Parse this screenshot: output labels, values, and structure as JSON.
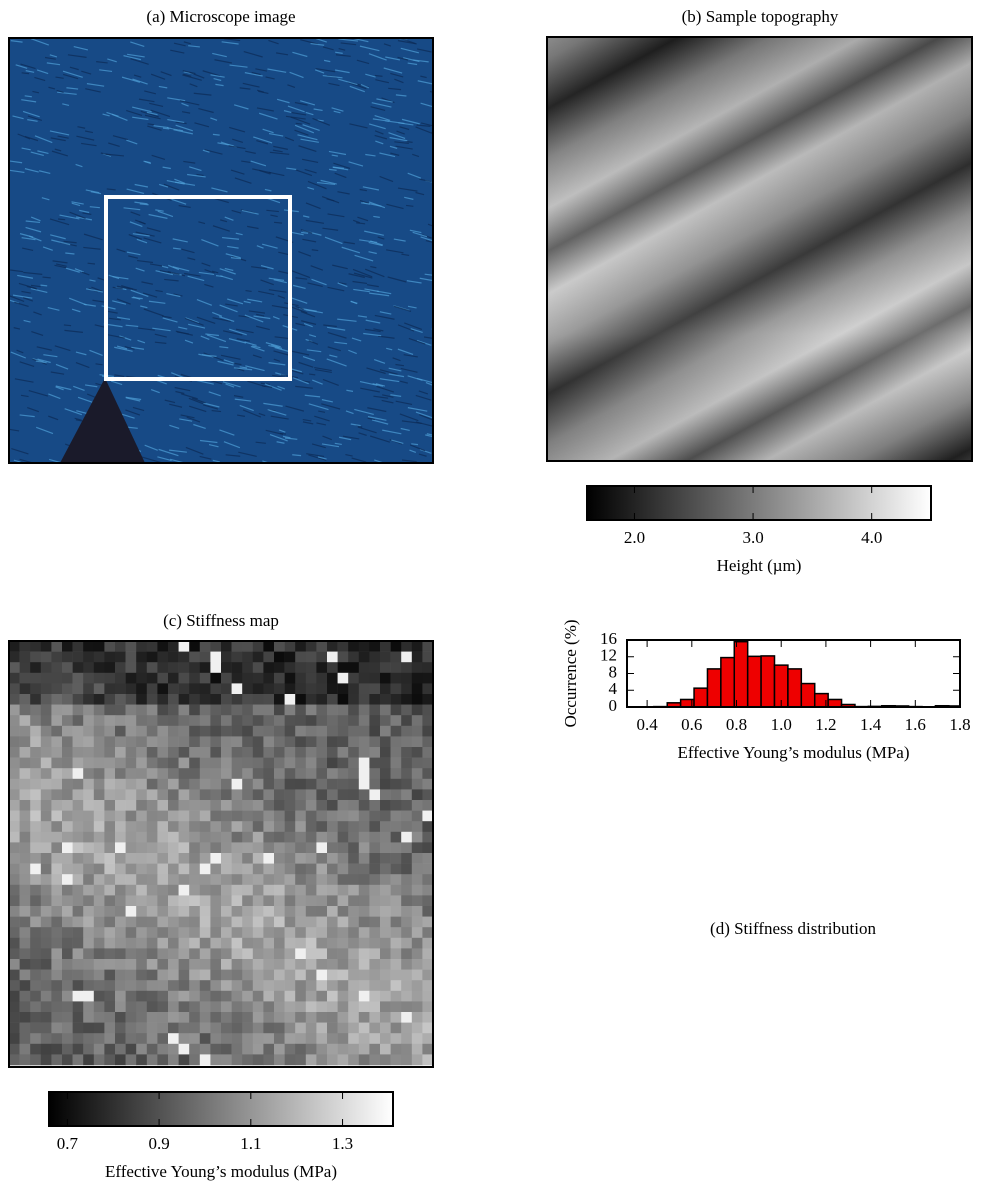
{
  "chart_data": [
    {
      "type": "image",
      "title": "(a) Microscope image"
    },
    {
      "type": "image",
      "title": "(b) Sample topography",
      "colorbar": {
        "label": "Height (µm)",
        "lim": [
          1.6,
          4.5
        ],
        "ticks": [
          {
            "value": 2,
            "label": "2.0"
          },
          {
            "value": 3,
            "label": "3.0"
          },
          {
            "value": 4,
            "label": "4.0"
          }
        ]
      }
    },
    {
      "type": "image",
      "title": "(c) Stiffness map",
      "colorbar": {
        "label": "Effective Young’s modulus (MPa)",
        "lim": [
          0.66,
          1.41
        ],
        "ticks": [
          0.7,
          0.9,
          1.1,
          1.3
        ]
      }
    },
    {
      "type": "histogram",
      "title": "(d) Stiffness distribution",
      "xlabel": "Effective Young’s modulus (MPa)",
      "ylabel": "Occurrence (%)",
      "color": "#ee0000",
      "bins": [
        0.43,
        0.49,
        0.55,
        0.61,
        0.67,
        0.73,
        0.79,
        0.85,
        0.91,
        0.97,
        1.03,
        1.09,
        1.15,
        1.21,
        1.27,
        1.33,
        1.39,
        1.45,
        1.51,
        1.57,
        1.63,
        1.69,
        1.75,
        1.81
      ],
      "counts": [
        0.1,
        1.0,
        1.8,
        4.5,
        9.1,
        11.8,
        15.6,
        12.1,
        12.2,
        10.0,
        9.1,
        5.6,
        3.2,
        1.8,
        0.6,
        0.1,
        0.15,
        0.3,
        0.25,
        0.1,
        0.05,
        0.3,
        0.25
      ],
      "xlim": [
        0.31,
        1.8
      ],
      "ylim": [
        0,
        16
      ],
      "xticks": [
        0.4,
        0.6,
        0.8,
        {
          "value": 1,
          "label": "1.0"
        },
        1.2,
        1.4,
        1.6,
        1.8
      ],
      "yticks": [
        0,
        4,
        8,
        12,
        16
      ]
    }
  ]
}
